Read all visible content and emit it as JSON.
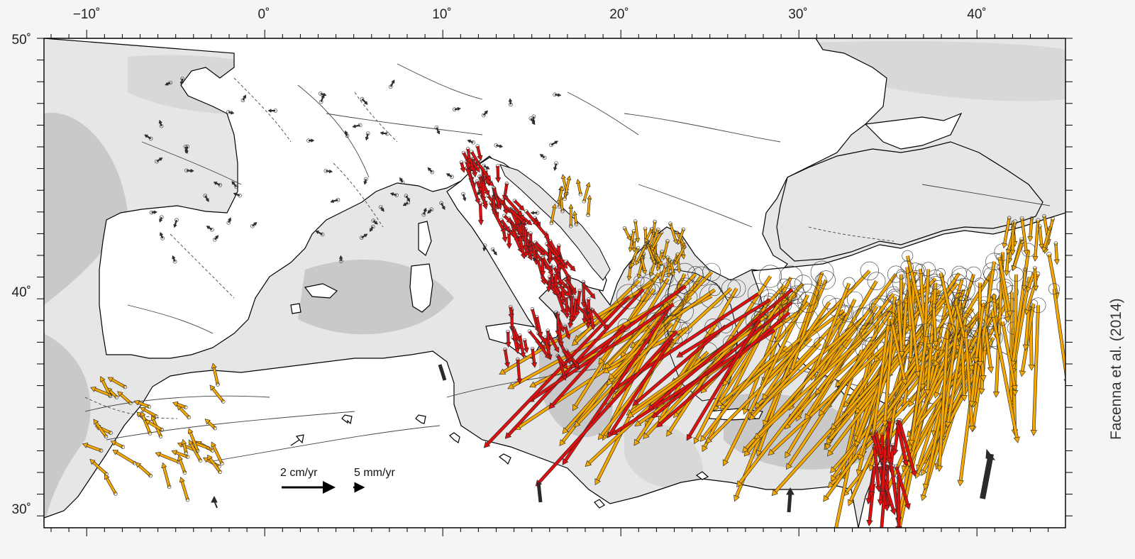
{
  "map": {
    "lon_ticks": [
      "−10˚",
      "0˚",
      "10˚",
      "20˚",
      "30˚",
      "40˚"
    ],
    "lat_ticks": [
      "50˚",
      "40˚",
      "30˚"
    ],
    "legend": {
      "large_label": "2 cm/yr",
      "small_label": "5 mm/yr"
    },
    "credit": "Facenna et al. (2014)",
    "colors": {
      "land": "#ffffff",
      "sea_light": "#e6e6e6",
      "sea_deep": "#c4c4c4",
      "vector_primary": "#f5a800",
      "vector_secondary": "#e01010",
      "plate_vector": "#2a2a2a",
      "coastline": "#000000"
    }
  }
}
